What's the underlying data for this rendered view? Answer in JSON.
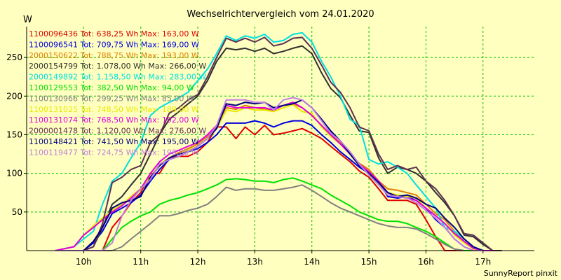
{
  "chart_data": {
    "type": "line",
    "title": "Wechselrichtervergleich vom 24.01.2020",
    "ylabel": "W",
    "xlabel": "",
    "credit": "SunnyReport pinxit",
    "ylim": [
      0,
      290
    ],
    "xlim": [
      9.0,
      17.9
    ],
    "x_ticks": [
      {
        "value": 10,
        "label": "10h"
      },
      {
        "value": 11,
        "label": "11h"
      },
      {
        "value": 12,
        "label": "12h"
      },
      {
        "value": 13,
        "label": "13h"
      },
      {
        "value": 14,
        "label": "14h"
      },
      {
        "value": 15,
        "label": "15h"
      },
      {
        "value": 16,
        "label": "16h"
      },
      {
        "value": 17,
        "label": "17h"
      }
    ],
    "y_ticks": [
      50,
      100,
      150,
      200,
      250
    ],
    "grid": true,
    "legend_position": "top-left",
    "series": [
      {
        "name": "1100096436 Tot: 638,25 Wh Max: 163,00 W",
        "color": "#E00000",
        "x": [
          9.5,
          10.0,
          10.17,
          10.33,
          10.5,
          10.67,
          10.83,
          11.0,
          11.17,
          11.33,
          11.5,
          11.67,
          11.83,
          12.0,
          12.17,
          12.33,
          12.5,
          12.67,
          12.83,
          13.0,
          13.17,
          13.33,
          13.5,
          13.67,
          13.83,
          14.0,
          14.17,
          14.33,
          14.5,
          14.67,
          14.83,
          15.0,
          15.17,
          15.33,
          15.5,
          15.67,
          15.83,
          16.0,
          16.17,
          16.33,
          16.5,
          16.67
        ],
        "y": [
          0,
          0,
          0,
          0,
          30,
          45,
          62,
          75,
          100,
          100,
          120,
          122,
          122,
          128,
          140,
          160,
          160,
          145,
          160,
          150,
          162,
          150,
          152,
          155,
          158,
          152,
          145,
          135,
          125,
          115,
          103,
          95,
          80,
          65,
          65,
          65,
          60,
          40,
          18,
          0,
          0,
          0
        ]
      },
      {
        "name": "1100096541 Tot: 709,75 Wh Max: 169,00 W",
        "color": "#0000E0",
        "x": [
          9.5,
          10.0,
          10.17,
          10.33,
          10.5,
          10.67,
          10.83,
          11.0,
          11.17,
          11.33,
          11.5,
          11.67,
          11.83,
          12.0,
          12.17,
          12.33,
          12.5,
          12.67,
          12.83,
          13.0,
          13.17,
          13.33,
          13.5,
          13.67,
          13.83,
          14.0,
          14.17,
          14.33,
          14.5,
          14.67,
          14.83,
          15.0,
          15.17,
          15.33,
          15.5,
          15.67,
          15.83,
          16.0,
          16.17,
          16.33,
          16.5,
          16.67,
          16.83,
          17.0,
          17.17
        ],
        "y": [
          0,
          0,
          10,
          25,
          48,
          55,
          62,
          72,
          90,
          105,
          118,
          122,
          128,
          132,
          140,
          150,
          165,
          165,
          165,
          168,
          165,
          160,
          165,
          168,
          168,
          162,
          150,
          140,
          128,
          118,
          108,
          100,
          90,
          70,
          68,
          70,
          65,
          55,
          40,
          30,
          15,
          5,
          0,
          0,
          0
        ]
      },
      {
        "name": "2000150622 Tot: 788,75 Wh Max: 193,00 W",
        "color": "#E08000",
        "x": [
          9.5,
          9.83,
          10.0,
          10.17,
          10.33,
          10.5,
          10.67,
          10.83,
          11.0,
          11.17,
          11.33,
          11.5,
          11.67,
          11.83,
          12.0,
          12.17,
          12.33,
          12.5,
          12.67,
          12.83,
          13.0,
          13.17,
          13.33,
          13.5,
          13.67,
          13.83,
          14.0,
          14.17,
          14.33,
          14.5,
          14.67,
          14.83,
          15.0,
          15.17,
          15.33,
          15.5,
          15.67,
          15.83,
          16.0,
          16.17,
          16.33,
          16.5,
          16.67,
          16.83,
          17.0,
          17.17
        ],
        "y": [
          0,
          5,
          20,
          30,
          42,
          52,
          60,
          70,
          80,
          95,
          110,
          120,
          127,
          132,
          138,
          148,
          162,
          185,
          183,
          188,
          185,
          183,
          182,
          188,
          190,
          185,
          175,
          162,
          150,
          140,
          125,
          113,
          105,
          90,
          80,
          78,
          75,
          72,
          60,
          48,
          40,
          25,
          12,
          3,
          0,
          0
        ]
      },
      {
        "name": "2000154799 Tot: 1.078,00 Wh Max: 266,00 W",
        "color": "#303030",
        "x": [
          9.5,
          10.0,
          10.17,
          10.33,
          10.5,
          10.67,
          10.83,
          11.0,
          11.17,
          11.33,
          11.5,
          11.67,
          11.83,
          12.0,
          12.17,
          12.33,
          12.5,
          12.67,
          12.83,
          13.0,
          13.17,
          13.33,
          13.5,
          13.67,
          13.83,
          14.0,
          14.17,
          14.33,
          14.5,
          14.67,
          14.83,
          15.0,
          15.17,
          15.33,
          15.5,
          15.67,
          15.83,
          16.0,
          16.17,
          16.33,
          16.5,
          16.67,
          16.83,
          17.0,
          17.17,
          17.33
        ],
        "y": [
          0,
          0,
          5,
          30,
          60,
          70,
          85,
          100,
          125,
          150,
          170,
          180,
          190,
          200,
          220,
          245,
          262,
          260,
          262,
          258,
          262,
          255,
          258,
          262,
          265,
          255,
          230,
          210,
          198,
          175,
          155,
          153,
          120,
          100,
          108,
          105,
          100,
          90,
          75,
          62,
          45,
          20,
          18,
          8,
          0,
          0
        ]
      },
      {
        "name": "2000149892 Tot: 1.158,50 Wh Max: 283,00 W",
        "color": "#00E0E0",
        "x": [
          9.5,
          9.83,
          10.0,
          10.17,
          10.33,
          10.5,
          10.67,
          10.83,
          11.0,
          11.17,
          11.33,
          11.5,
          11.67,
          11.83,
          12.0,
          12.17,
          12.33,
          12.5,
          12.67,
          12.83,
          13.0,
          13.17,
          13.33,
          13.5,
          13.67,
          13.83,
          14.0,
          14.17,
          14.33,
          14.5,
          14.67,
          14.83,
          15.0,
          15.17,
          15.33,
          15.5,
          15.67,
          15.83,
          16.0,
          16.17,
          16.33,
          16.5,
          16.67,
          16.83,
          17.0,
          17.17,
          17.33
        ],
        "y": [
          0,
          5,
          15,
          25,
          60,
          90,
          100,
          120,
          140,
          175,
          185,
          192,
          198,
          205,
          220,
          235,
          255,
          278,
          272,
          278,
          275,
          280,
          270,
          272,
          280,
          282,
          270,
          245,
          225,
          200,
          170,
          162,
          118,
          112,
          115,
          108,
          100,
          85,
          70,
          55,
          30,
          25,
          15,
          5,
          0,
          0,
          0
        ]
      },
      {
        "name": "1100129553 Tot: 382,50 Wh Max: 94,00 W",
        "color": "#00E000",
        "x": [
          9.5,
          10.17,
          10.33,
          10.5,
          10.67,
          10.83,
          11.0,
          11.17,
          11.33,
          11.5,
          11.67,
          11.83,
          12.0,
          12.17,
          12.33,
          12.5,
          12.67,
          12.83,
          13.0,
          13.17,
          13.33,
          13.5,
          13.67,
          13.83,
          14.0,
          14.17,
          14.33,
          14.5,
          14.67,
          14.83,
          15.0,
          15.17,
          15.33,
          15.5,
          15.67,
          15.83,
          16.0,
          16.17,
          16.33,
          16.5,
          16.67,
          16.83
        ],
        "y": [
          0,
          0,
          0,
          15,
          30,
          38,
          45,
          50,
          60,
          65,
          68,
          72,
          75,
          80,
          85,
          92,
          93,
          92,
          90,
          90,
          88,
          92,
          94,
          90,
          85,
          80,
          72,
          65,
          58,
          50,
          45,
          40,
          38,
          38,
          35,
          30,
          25,
          18,
          10,
          2,
          0,
          0
        ]
      },
      {
        "name": "1100130966 Tot: 299,25 Wh Max: 85,00 W",
        "color": "#808080",
        "x": [
          9.5,
          10.33,
          10.5,
          10.67,
          10.83,
          11.0,
          11.17,
          11.33,
          11.5,
          11.67,
          11.83,
          12.0,
          12.17,
          12.33,
          12.5,
          12.67,
          12.83,
          13.0,
          13.17,
          13.33,
          13.5,
          13.67,
          13.83,
          14.0,
          14.17,
          14.33,
          14.5,
          14.67,
          14.83,
          15.0,
          15.17,
          15.33,
          15.5,
          15.67,
          15.83,
          16.0,
          16.17,
          16.33,
          16.5,
          16.67
        ],
        "y": [
          0,
          0,
          0,
          5,
          15,
          25,
          35,
          45,
          45,
          48,
          52,
          55,
          60,
          70,
          82,
          78,
          80,
          80,
          78,
          78,
          80,
          82,
          85,
          78,
          70,
          62,
          55,
          50,
          45,
          40,
          35,
          32,
          30,
          30,
          28,
          22,
          15,
          8,
          2,
          0
        ]
      },
      {
        "name": "1100131025 Tot: 748,50 Wh Max: 189,00 W",
        "color": "#E8E800",
        "x": [
          9.5,
          9.83,
          10.0,
          10.17,
          10.33,
          10.5,
          10.67,
          10.83,
          11.0,
          11.17,
          11.33,
          11.5,
          11.67,
          11.83,
          12.0,
          12.17,
          12.33,
          12.5,
          12.67,
          12.83,
          13.0,
          13.17,
          13.33,
          13.5,
          13.67,
          13.83,
          14.0,
          14.17,
          14.33,
          14.5,
          14.67,
          14.83,
          15.0,
          15.17,
          15.33,
          15.5,
          15.67,
          15.83,
          16.0,
          16.17,
          16.33,
          16.5,
          16.67,
          16.83,
          17.0,
          17.17
        ],
        "y": [
          0,
          5,
          20,
          32,
          42,
          52,
          60,
          70,
          80,
          95,
          112,
          120,
          125,
          130,
          135,
          145,
          158,
          182,
          180,
          185,
          182,
          182,
          180,
          185,
          189,
          180,
          178,
          160,
          148,
          138,
          125,
          112,
          100,
          88,
          75,
          72,
          70,
          68,
          55,
          45,
          35,
          20,
          10,
          2,
          0,
          0
        ]
      },
      {
        "name": "1100131074 Tot: 768,50 Wh Max: 192,00 W",
        "color": "#E000E0",
        "x": [
          9.5,
          9.83,
          10.0,
          10.17,
          10.33,
          10.5,
          10.67,
          10.83,
          11.0,
          11.17,
          11.33,
          11.5,
          11.67,
          11.83,
          12.0,
          12.17,
          12.33,
          12.5,
          12.67,
          12.83,
          13.0,
          13.17,
          13.33,
          13.5,
          13.67,
          13.83,
          14.0,
          14.17,
          14.33,
          14.5,
          14.67,
          14.83,
          15.0,
          15.17,
          15.33,
          15.5,
          15.67,
          15.83,
          16.0,
          16.17,
          16.33,
          16.5,
          16.67,
          16.83,
          17.0,
          17.17
        ],
        "y": [
          0,
          5,
          20,
          30,
          40,
          50,
          58,
          68,
          80,
          100,
          115,
          125,
          130,
          135,
          140,
          150,
          162,
          188,
          185,
          185,
          185,
          185,
          182,
          188,
          192,
          185,
          175,
          162,
          150,
          138,
          125,
          112,
          102,
          90,
          75,
          70,
          68,
          65,
          55,
          45,
          35,
          22,
          12,
          3,
          0,
          0
        ]
      },
      {
        "name": "2000001478 Tot: 1.120,00 Wh Max: 276,00 W",
        "color": "#603050",
        "x": [
          9.5,
          10.0,
          10.17,
          10.33,
          10.5,
          10.67,
          10.83,
          11.0,
          11.17,
          11.33,
          11.5,
          11.67,
          11.83,
          12.0,
          12.17,
          12.33,
          12.5,
          12.67,
          12.83,
          13.0,
          13.17,
          13.33,
          13.5,
          13.67,
          13.83,
          14.0,
          14.17,
          14.33,
          14.5,
          14.67,
          14.83,
          15.0,
          15.17,
          15.33,
          15.5,
          15.67,
          15.83,
          16.0,
          16.17,
          16.33,
          16.5,
          16.67,
          16.83,
          17.0,
          17.17,
          17.33
        ],
        "y": [
          0,
          0,
          5,
          35,
          88,
          95,
          105,
          110,
          140,
          150,
          178,
          185,
          195,
          202,
          225,
          250,
          275,
          270,
          275,
          270,
          276,
          265,
          268,
          275,
          276,
          262,
          240,
          218,
          205,
          185,
          160,
          155,
          125,
          105,
          110,
          105,
          108,
          90,
          80,
          65,
          45,
          22,
          20,
          10,
          0,
          0
        ]
      },
      {
        "name": "1100148421 Tot: 741,50 Wh Max: 195,00 W",
        "color": "#000080",
        "x": [
          9.5,
          10.0,
          10.17,
          10.33,
          10.5,
          10.67,
          10.83,
          11.0,
          11.17,
          11.33,
          11.5,
          11.67,
          11.83,
          12.0,
          12.17,
          12.33,
          12.5,
          12.67,
          12.83,
          13.0,
          13.17,
          13.33,
          13.5,
          13.67,
          13.83,
          14.0,
          14.17,
          14.33,
          14.5,
          14.67,
          14.83,
          15.0,
          15.17,
          15.33,
          15.5,
          15.67,
          15.83,
          16.0,
          16.17,
          16.33,
          16.5,
          16.67,
          16.83,
          17.0
        ],
        "y": [
          0,
          0,
          12,
          30,
          55,
          62,
          65,
          70,
          95,
          110,
          120,
          125,
          128,
          135,
          145,
          158,
          190,
          188,
          192,
          190,
          192,
          185,
          188,
          190,
          195,
          185,
          170,
          155,
          142,
          125,
          110,
          100,
          88,
          75,
          70,
          72,
          68,
          60,
          55,
          42,
          30,
          15,
          5,
          0
        ]
      },
      {
        "name": "1100119477 Tot: 724,75 Wh Max: 198,00 W",
        "color": "#C080E0",
        "x": [
          9.5,
          10.33,
          10.5,
          10.67,
          10.83,
          11.0,
          11.17,
          11.33,
          11.5,
          11.67,
          11.83,
          12.0,
          12.17,
          12.33,
          12.5,
          12.67,
          12.83,
          13.0,
          13.17,
          13.33,
          13.5,
          13.67,
          13.83,
          14.0,
          14.17,
          14.33,
          14.5,
          14.67,
          14.83,
          15.0,
          15.17,
          15.33,
          15.5,
          15.67,
          15.83,
          16.0,
          16.17,
          16.33,
          16.5,
          16.67,
          16.83,
          17.0
        ],
        "y": [
          0,
          0,
          10,
          45,
          65,
          80,
          92,
          112,
          118,
          122,
          128,
          135,
          145,
          162,
          195,
          195,
          195,
          192,
          192,
          182,
          195,
          198,
          195,
          185,
          168,
          152,
          142,
          128,
          112,
          98,
          85,
          72,
          70,
          68,
          62,
          52,
          42,
          30,
          15,
          5,
          0,
          0
        ]
      }
    ]
  }
}
